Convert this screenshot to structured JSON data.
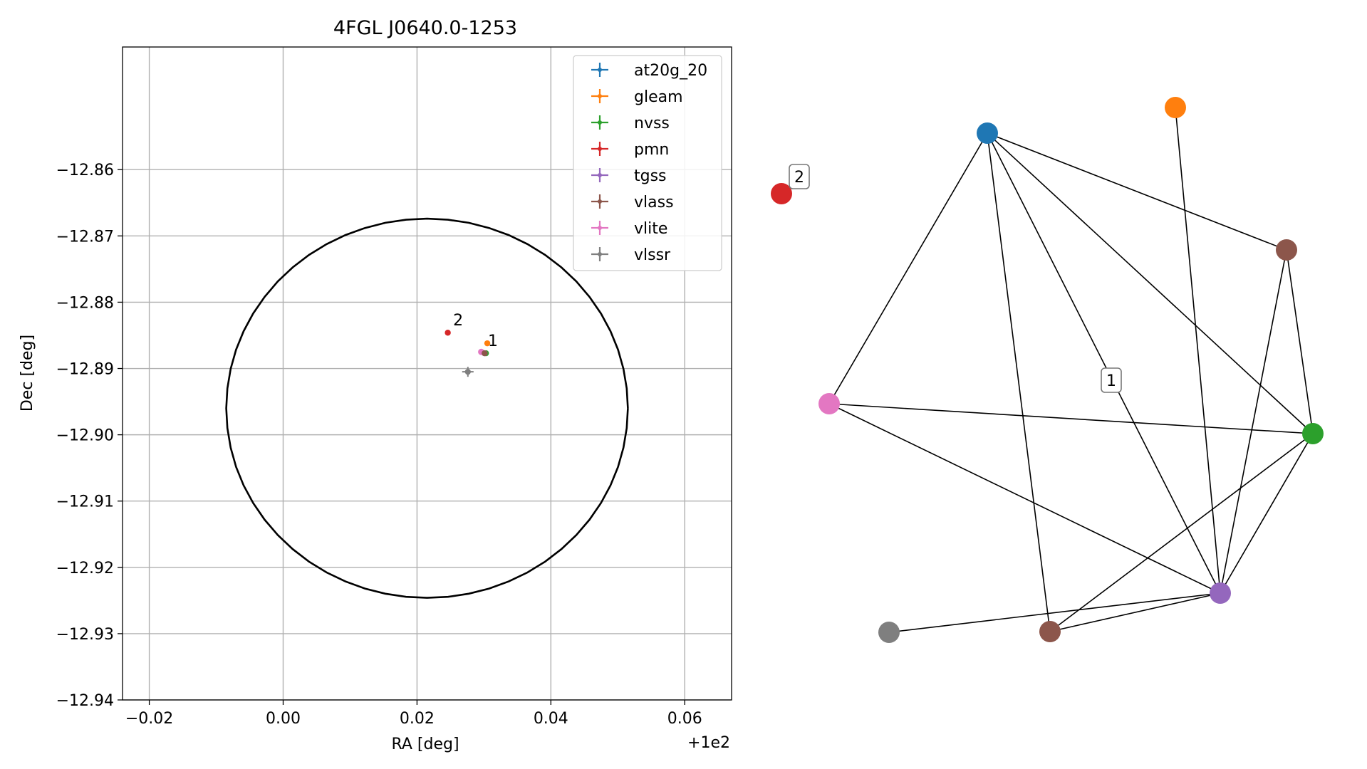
{
  "chart_data": [
    {
      "type": "scatter",
      "title": "4FGL J0640.0-1253",
      "xlabel": "RA [deg]",
      "ylabel": "Dec [deg]",
      "x_offset_label": "+1e2",
      "xlim": [
        -0.024,
        0.067
      ],
      "ylim": [
        -12.94,
        -12.8415
      ],
      "x_ticks": [
        -0.02,
        0.0,
        0.02,
        0.04,
        0.06
      ],
      "x_tick_labels": [
        "−0.02",
        "0.00",
        "0.02",
        "0.04",
        "0.06"
      ],
      "y_ticks": [
        -12.86,
        -12.87,
        -12.88,
        -12.89,
        -12.9,
        -12.91,
        -12.92,
        -12.93,
        -12.94
      ],
      "y_tick_labels": [
        "−12.86",
        "−12.87",
        "−12.88",
        "−12.89",
        "−12.90",
        "−12.91",
        "−12.92",
        "−12.93",
        "−12.94"
      ],
      "grid": true,
      "legend_position": "top-right",
      "ellipse": {
        "center": [
          0.0215,
          -12.896
        ],
        "semi_ra": 0.03,
        "semi_dec": 0.0286
      },
      "series": [
        {
          "name": "at20g_20",
          "color": "#1f77b4",
          "points": []
        },
        {
          "name": "gleam",
          "color": "#ff7f0e",
          "points": [
            [
              0.0305,
              -12.8862
            ]
          ]
        },
        {
          "name": "nvss",
          "color": "#2ca02c",
          "points": [
            [
              0.0303,
              -12.8877
            ]
          ]
        },
        {
          "name": "pmn",
          "color": "#d62728",
          "points": [
            [
              0.0246,
              -12.8846
            ]
          ]
        },
        {
          "name": "tgss",
          "color": "#9467bd",
          "points": [
            [
              0.0301,
              -12.8877
            ]
          ]
        },
        {
          "name": "vlass",
          "color": "#8c564b",
          "points": [
            [
              0.0301,
              -12.8877
            ]
          ]
        },
        {
          "name": "vlite",
          "color": "#e377c2",
          "points": [
            [
              0.0296,
              -12.8875
            ]
          ]
        },
        {
          "name": "vlssr",
          "color": "#7f7f7f",
          "points": [
            [
              0.0276,
              -12.8905
            ]
          ]
        }
      ],
      "annotations": [
        {
          "text": "2",
          "x": 0.0254,
          "y": -12.8835
        },
        {
          "text": "1",
          "x": 0.0306,
          "y": -12.8866
        }
      ]
    },
    {
      "type": "network",
      "nodes": [
        {
          "id": "blue",
          "color": "#1f77b4"
        },
        {
          "id": "orange",
          "color": "#ff7f0e"
        },
        {
          "id": "red",
          "color": "#d62728"
        },
        {
          "id": "brown_top",
          "color": "#8c564b"
        },
        {
          "id": "pink",
          "color": "#e377c2"
        },
        {
          "id": "green",
          "color": "#2ca02c"
        },
        {
          "id": "purple",
          "color": "#9467bd"
        },
        {
          "id": "gray",
          "color": "#7f7f7f"
        },
        {
          "id": "brown_bottom",
          "color": "#8c564b"
        }
      ],
      "edges": [
        [
          "blue",
          "brown_top"
        ],
        [
          "blue",
          "green"
        ],
        [
          "blue",
          "pink"
        ],
        [
          "blue",
          "purple"
        ],
        [
          "blue",
          "brown_bottom"
        ],
        [
          "orange",
          "purple"
        ],
        [
          "brown_top",
          "green"
        ],
        [
          "brown_top",
          "purple"
        ],
        [
          "pink",
          "green"
        ],
        [
          "pink",
          "purple"
        ],
        [
          "green",
          "purple"
        ],
        [
          "green",
          "brown_bottom"
        ],
        [
          "purple",
          "brown_bottom"
        ],
        [
          "gray",
          "purple"
        ]
      ],
      "labels": [
        {
          "text": "1"
        },
        {
          "text": "2"
        }
      ]
    }
  ]
}
